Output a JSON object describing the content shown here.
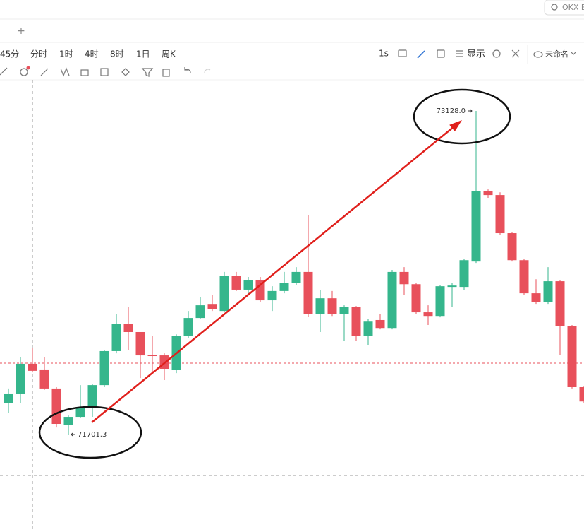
{
  "toolbar": {
    "search": "OKX B",
    "new_tab": "+",
    "intervals": [
      "45分",
      "分时",
      "1时",
      "4时",
      "8时",
      "1日",
      "周K"
    ],
    "refresh": "1s",
    "display": "显示",
    "layout_name": "未命名"
  },
  "chart_data": {
    "type": "candlestick",
    "open": [
      71841,
      71882,
      72013,
      71988,
      71904,
      71742,
      71779,
      71817,
      71919,
      72069,
      72190,
      72153,
      72053,
      72050,
      71985,
      72137,
      72215,
      72277,
      72246,
      72402,
      72340,
      72383,
      72293,
      72334,
      72371,
      72418,
      72231,
      72302,
      72231,
      72262,
      72137,
      72206,
      72171,
      72418,
      72364,
      72240,
      72224,
      72352,
      72352,
      72464,
      72776,
      72757,
      72589,
      72470,
      72324,
      72284,
      72377,
      72178,
      71910
    ],
    "high": [
      71904,
      72044,
      72084,
      72044,
      71910,
      71785,
      71919,
      71925,
      72075,
      72231,
      72262,
      72153,
      72137,
      72059,
      72143,
      72246,
      72308,
      72315,
      72418,
      72418,
      72396,
      72396,
      72355,
      72418,
      72439,
      72667,
      72340,
      72334,
      72271,
      72268,
      72209,
      72231,
      72427,
      72439,
      72371,
      72271,
      72361,
      72371,
      72477,
      73128.0,
      72782,
      72769,
      72595,
      72477,
      72386,
      72439,
      72383,
      72184,
      71916
    ],
    "low": [
      71795,
      71841,
      71975,
      71898,
      71732,
      71701.3,
      71773,
      71779,
      71910,
      72059,
      72075,
      71950,
      71966,
      71941,
      71972,
      72128,
      72209,
      72246,
      72240,
      72334,
      72315,
      72287,
      72246,
      72324,
      72361,
      72221,
      72153,
      72224,
      72115,
      72115,
      72097,
      72165,
      72165,
      72315,
      72234,
      72184,
      72218,
      72262,
      72340,
      72458,
      72745,
      72583,
      72464,
      72315,
      72277,
      72277,
      72050,
      71904,
      71841
    ],
    "close": [
      71882,
      72013,
      71982,
      71904,
      71748,
      71779,
      71817,
      71919,
      72069,
      72190,
      72153,
      72050,
      72047,
      71991,
      72137,
      72215,
      72271,
      72253,
      72402,
      72340,
      72383,
      72293,
      72334,
      72371,
      72418,
      72231,
      72302,
      72231,
      72262,
      72137,
      72199,
      72171,
      72418,
      72364,
      72240,
      72224,
      72355,
      72358,
      72470,
      72776,
      72757,
      72589,
      72470,
      72324,
      72284,
      72377,
      72178,
      71910,
      71847
    ],
    "up_color": "#35b68c",
    "down_color": "#e8505b",
    "ylim": [
      71271.4,
      73274.4
    ],
    "price_line": 72016,
    "max_label": "73128.0",
    "min_label": "71701.3"
  }
}
